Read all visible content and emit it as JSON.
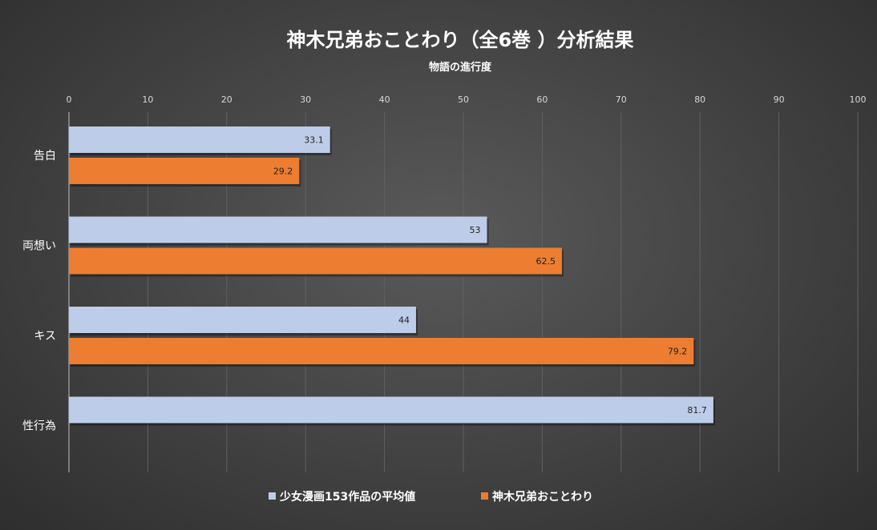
{
  "chart_data": {
    "type": "bar",
    "orientation": "horizontal",
    "title": "神木兄弟おことわり（全6巻 ）分析結果",
    "xlabel": "物語の進行度",
    "ylabel": "",
    "xlim": [
      0,
      100
    ],
    "ticks": [
      0,
      10,
      20,
      30,
      40,
      50,
      60,
      70,
      80,
      90,
      100
    ],
    "categories": [
      "告白",
      "両想い",
      "キス",
      "性行為"
    ],
    "series": [
      {
        "name": "少女漫画153作品の平均値",
        "color": "#bdcde9",
        "values": [
          33.1,
          53,
          44,
          81.7
        ],
        "labels": [
          "33.1",
          "53",
          "44",
          "81.7"
        ]
      },
      {
        "name": "神木兄弟おことわり",
        "color": "#ed7d31",
        "values": [
          29.2,
          62.5,
          79.2,
          null
        ],
        "labels": [
          "29.2",
          "62.5",
          "79.2",
          ""
        ]
      }
    ],
    "grid": true,
    "legend_position": "bottom"
  }
}
